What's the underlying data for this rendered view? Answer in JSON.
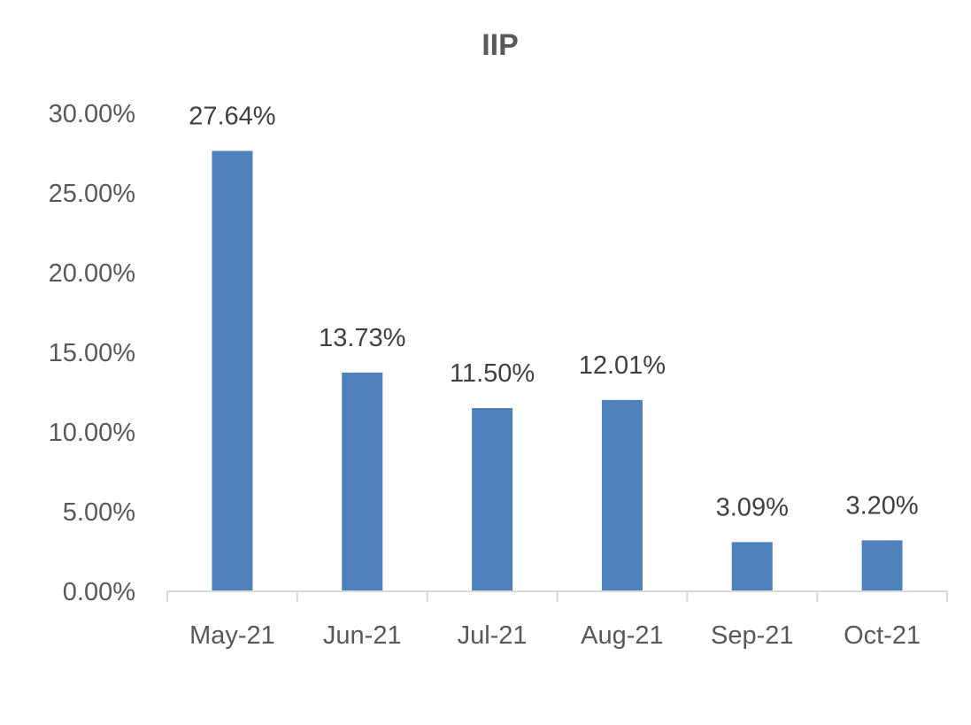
{
  "chart_data": {
    "type": "bar",
    "title": "IIP",
    "xlabel": "",
    "ylabel": "",
    "categories": [
      "May-21",
      "Jun-21",
      "Jul-21",
      "Aug-21",
      "Sep-21",
      "Oct-21"
    ],
    "values": [
      27.64,
      13.73,
      11.5,
      12.01,
      3.09,
      3.2
    ],
    "data_labels": [
      "27.64%",
      "13.73%",
      "11.50%",
      "12.01%",
      "3.09%",
      "3.20%"
    ],
    "ylim": [
      0,
      30
    ],
    "yticks": [
      0,
      5,
      10,
      15,
      20,
      25,
      30
    ],
    "ytick_labels": [
      "0.00%",
      "5.00%",
      "10.00%",
      "15.00%",
      "20.00%",
      "25.00%",
      "30.00%"
    ],
    "grid": false,
    "legend": "none",
    "colors": {
      "bar": "#4f81bd",
      "axis": "#d9d9d9",
      "text": "#595959"
    }
  }
}
